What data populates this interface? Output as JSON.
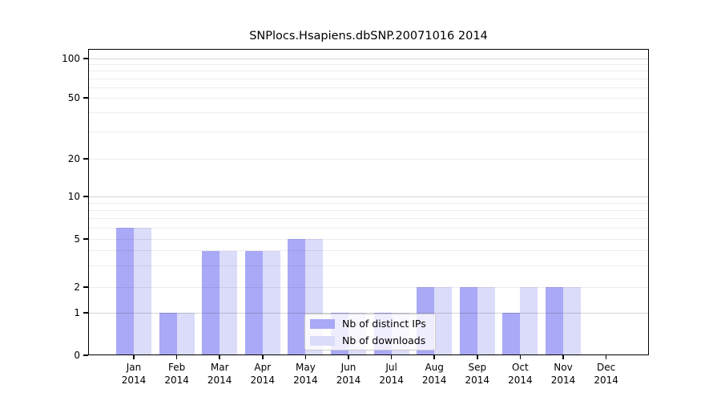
{
  "chart_title": "SNPlocs.Hsapiens.dbSNP.20071016 2014",
  "chart_data": {
    "type": "bar",
    "title": "SNPlocs.Hsapiens.dbSNP.20071016 2014",
    "categories": [
      "Jan",
      "Feb",
      "Mar",
      "Apr",
      "May",
      "Jun",
      "Jul",
      "Aug",
      "Sep",
      "Oct",
      "Nov",
      "Dec"
    ],
    "x_year_label": "2014",
    "series": [
      {
        "name": "Nb of distinct IPs",
        "color": "#a9a9f7",
        "values": [
          6,
          1,
          4,
          4,
          5,
          1,
          1,
          2,
          2,
          1,
          2,
          0
        ]
      },
      {
        "name": "Nb of downloads",
        "color": "#dbdbfa",
        "values": [
          6,
          1,
          4,
          4,
          5,
          1,
          1,
          2,
          2,
          2,
          2,
          0
        ]
      }
    ],
    "yscale": "log-like",
    "ylim": [
      0,
      120
    ],
    "yticks": [
      0,
      1,
      2,
      5,
      10,
      20,
      50,
      100
    ],
    "major_gridlines": [
      1,
      10,
      100
    ],
    "minor_gridlines": [
      2,
      3,
      4,
      5,
      6,
      7,
      8,
      9,
      20,
      30,
      40,
      50,
      60,
      70,
      80,
      90
    ],
    "grid": true,
    "legend_position": "bottom-center"
  }
}
